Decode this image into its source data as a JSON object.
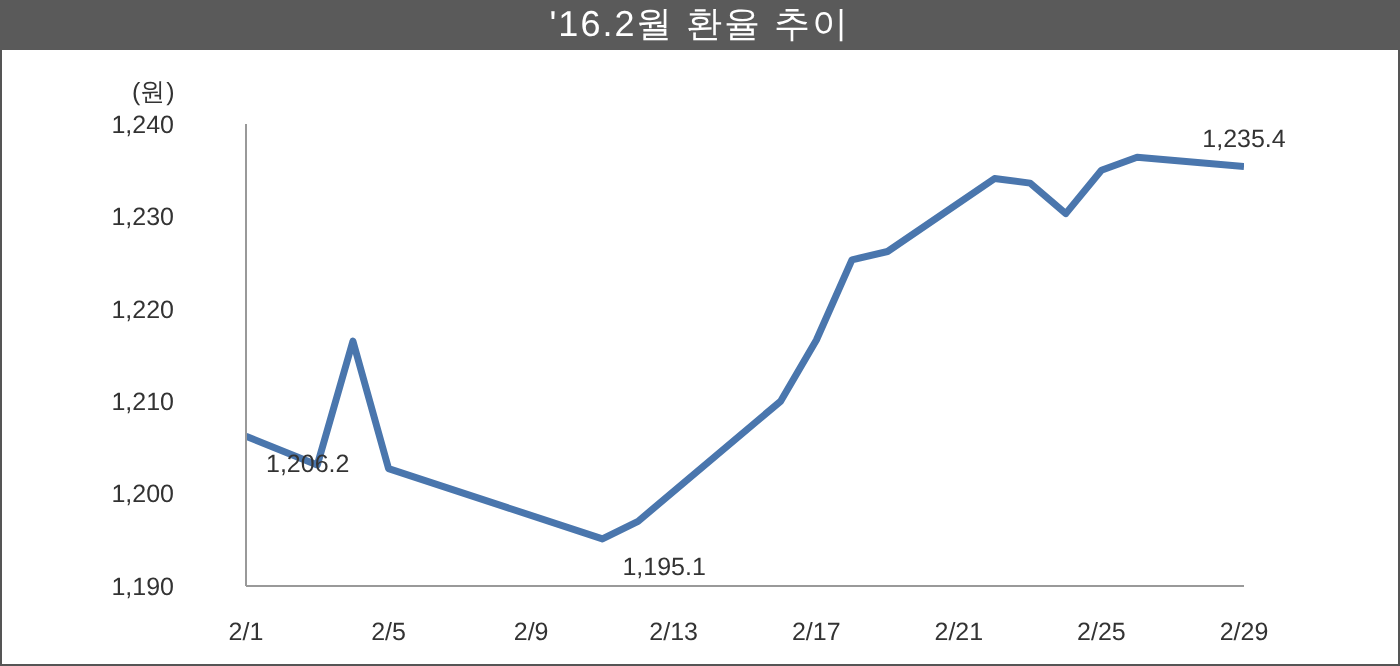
{
  "chart_data": {
    "type": "line",
    "title": "'16.2월 환율 추이",
    "ylabel": "(원)",
    "x": [
      "2016-02-01",
      "2016-02-03",
      "2016-02-04",
      "2016-02-05",
      "2016-02-11",
      "2016-02-12",
      "2016-02-16",
      "2016-02-17",
      "2016-02-18",
      "2016-02-19",
      "2016-02-22",
      "2016-02-23",
      "2016-02-24",
      "2016-02-25",
      "2016-02-26",
      "2016-02-29"
    ],
    "series": [
      {
        "color": "#4a76ad",
        "values": [
          1206.2,
          1203.1,
          1216.5,
          1202.7,
          1195.1,
          1197.0,
          1210.0,
          1216.6,
          1225.3,
          1226.2,
          1234.1,
          1233.6,
          1230.3,
          1235.0,
          1236.4,
          1235.4
        ]
      }
    ],
    "xlim": [
      "2016-02-01",
      "2016-02-29"
    ],
    "xticks": [
      {
        "value": "2016-02-01",
        "label": "2/1"
      },
      {
        "value": "2016-02-05",
        "label": "2/5"
      },
      {
        "value": "2016-02-09",
        "label": "2/9"
      },
      {
        "value": "2016-02-13",
        "label": "2/13"
      },
      {
        "value": "2016-02-17",
        "label": "2/17"
      },
      {
        "value": "2016-02-21",
        "label": "2/21"
      },
      {
        "value": "2016-02-25",
        "label": "2/25"
      },
      {
        "value": "2016-02-29",
        "label": "2/29"
      }
    ],
    "ylim": [
      1190,
      1240
    ],
    "yticks": [
      {
        "value": 1190,
        "label": "1,190"
      },
      {
        "value": 1200,
        "label": "1,200"
      },
      {
        "value": 1210,
        "label": "1,210"
      },
      {
        "value": 1220,
        "label": "1,220"
      },
      {
        "value": 1230,
        "label": "1,230"
      },
      {
        "value": 1240,
        "label": "1,240"
      }
    ],
    "annotations": [
      {
        "text": "1,206.2",
        "x": "2016-02-01",
        "y": 1206.2
      },
      {
        "text": "1,195.1",
        "x": "2016-02-11",
        "y": 1195.1
      },
      {
        "text": "1,235.4",
        "x": "2016-02-29",
        "y": 1235.4
      }
    ],
    "grid": false,
    "marker": "none",
    "line_style": "solid"
  }
}
